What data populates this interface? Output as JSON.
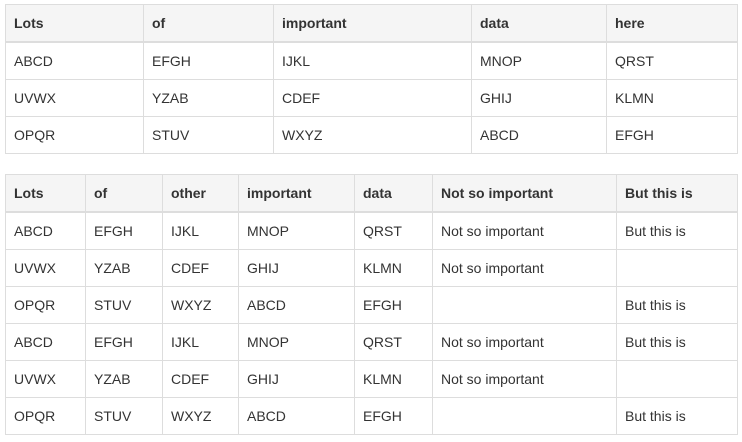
{
  "table_1": {
    "headers": [
      "Lots",
      "of",
      "important",
      "data",
      "here"
    ],
    "rows": [
      [
        "ABCD",
        "EFGH",
        "IJKL",
        "MNOP",
        "QRST"
      ],
      [
        "UVWX",
        "YZAB",
        "CDEF",
        "GHIJ",
        "KLMN"
      ],
      [
        "OPQR",
        "STUV",
        "WXYZ",
        "ABCD",
        "EFGH"
      ]
    ]
  },
  "table_2": {
    "headers": [
      "Lots",
      "of",
      "other",
      "important",
      "data",
      "Not so important",
      "But this is"
    ],
    "rows": [
      [
        "ABCD",
        "EFGH",
        "IJKL",
        "MNOP",
        "QRST",
        "Not so important",
        "But this is"
      ],
      [
        "UVWX",
        "YZAB",
        "CDEF",
        "GHIJ",
        "KLMN",
        "Not so important",
        ""
      ],
      [
        "OPQR",
        "STUV",
        "WXYZ",
        "ABCD",
        "EFGH",
        "",
        "But this is"
      ],
      [
        "ABCD",
        "EFGH",
        "IJKL",
        "MNOP",
        "QRST",
        "Not so important",
        "But this is"
      ],
      [
        "UVWX",
        "YZAB",
        "CDEF",
        "GHIJ",
        "KLMN",
        "Not so important",
        ""
      ],
      [
        "OPQR",
        "STUV",
        "WXYZ",
        "ABCD",
        "EFGH",
        "",
        "But this is"
      ]
    ]
  }
}
